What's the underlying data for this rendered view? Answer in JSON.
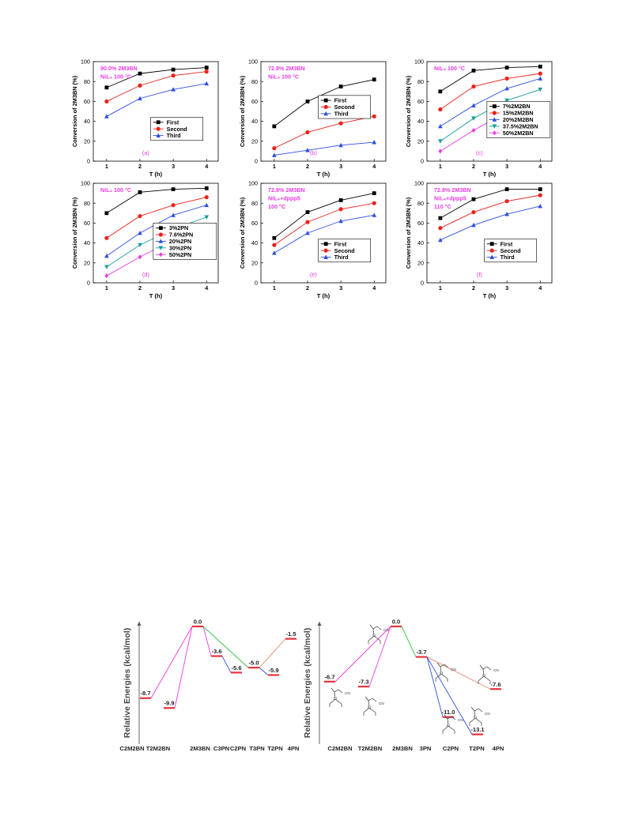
{
  "colors": {
    "black": "#000000",
    "red": "#e8231b",
    "blue": "#2c4fe0",
    "teal": "#1a9e9a",
    "magenta": "#e83de3",
    "green": "#34c43a",
    "orange": "#e48c6c",
    "annotation": "#e83de3",
    "level": "#e8323c"
  },
  "chart_data": [
    {
      "type": "line",
      "panel": "(a)",
      "annotation": [
        "90.0% 2M3BN",
        "NiL₄ 100 °C"
      ],
      "xlabel": "T (h)",
      "ylabel": "Conversion of 2M3BN (%)",
      "x": [
        1,
        2,
        3,
        4
      ],
      "xticks": [
        "1",
        "2",
        "3",
        "4"
      ],
      "ylim": [
        0,
        100
      ],
      "yticks": [
        "0",
        "20",
        "40",
        "60",
        "80",
        "100"
      ],
      "legend": "bottom-right",
      "series": [
        {
          "name": "First",
          "color": "#000000",
          "marker": "square",
          "values": [
            74,
            88,
            92,
            94
          ]
        },
        {
          "name": "Second",
          "color": "#e8231b",
          "marker": "circle",
          "values": [
            60,
            76,
            86,
            90
          ]
        },
        {
          "name": "Third",
          "color": "#2c4fe0",
          "marker": "triangle",
          "values": [
            45,
            63,
            72,
            78
          ]
        }
      ]
    },
    {
      "type": "line",
      "panel": "(b)",
      "annotation": [
        "72.8% 2M3BN",
        "NiL₄ 100 °C"
      ],
      "xlabel": "T (h)",
      "ylabel": "Conversion of 2M3BN (%)",
      "x": [
        1,
        2,
        3,
        4
      ],
      "xticks": [
        "1",
        "2",
        "3",
        "4"
      ],
      "ylim": [
        0,
        100
      ],
      "yticks": [
        "0",
        "20",
        "40",
        "60",
        "80",
        "100"
      ],
      "legend": "center-right",
      "series": [
        {
          "name": "First",
          "color": "#000000",
          "marker": "square",
          "values": [
            35,
            60,
            75,
            82
          ]
        },
        {
          "name": "Second",
          "color": "#e8231b",
          "marker": "circle",
          "values": [
            13,
            29,
            38,
            45
          ]
        },
        {
          "name": "Third",
          "color": "#2c4fe0",
          "marker": "triangle",
          "values": [
            6,
            11,
            16,
            19
          ]
        }
      ]
    },
    {
      "type": "line",
      "panel": "(c)",
      "annotation": [
        "NiL₄ 100 °C"
      ],
      "xlabel": "T (h)",
      "ylabel": "Conversion of 2M3BN (%)",
      "x": [
        1,
        2,
        3,
        4
      ],
      "xticks": [
        "1",
        "2",
        "3",
        "4"
      ],
      "ylim": [
        0,
        100
      ],
      "yticks": [
        "0",
        "20",
        "40",
        "60",
        "80",
        "100"
      ],
      "legend": "bottom-right",
      "series": [
        {
          "name": "7%2M2BN",
          "color": "#000000",
          "marker": "square",
          "values": [
            70,
            91,
            94,
            95
          ]
        },
        {
          "name": "15%2M2BN",
          "color": "#e8231b",
          "marker": "circle",
          "values": [
            52,
            75,
            83,
            88
          ]
        },
        {
          "name": "20%2M2BN",
          "color": "#2c4fe0",
          "marker": "triangle",
          "values": [
            35,
            56,
            73,
            83
          ]
        },
        {
          "name": "37.5%2M2BN",
          "color": "#1a9e9a",
          "marker": "triangle-down",
          "values": [
            20,
            43,
            61,
            72
          ]
        },
        {
          "name": "50%2M2BN",
          "color": "#e83de3",
          "marker": "diamond",
          "values": [
            10,
            31,
            49,
            58
          ]
        }
      ]
    },
    {
      "type": "line",
      "panel": "(d)",
      "annotation": [
        "NiL₄ 100 °C"
      ],
      "xlabel": "T (h)",
      "ylabel": "Conversion of 2M3BN (%)",
      "x": [
        1,
        2,
        3,
        4
      ],
      "xticks": [
        "1",
        "2",
        "3",
        "4"
      ],
      "ylim": [
        0,
        100
      ],
      "yticks": [
        "0",
        "20",
        "40",
        "60",
        "80",
        "100"
      ],
      "legend": "bottom-right",
      "series": [
        {
          "name": "3%2PN",
          "color": "#000000",
          "marker": "square",
          "values": [
            70,
            91,
            94,
            95
          ]
        },
        {
          "name": "7.6%2PN",
          "color": "#e8231b",
          "marker": "circle",
          "values": [
            45,
            67,
            78,
            86
          ]
        },
        {
          "name": "20%2PN",
          "color": "#2c4fe0",
          "marker": "triangle",
          "values": [
            27,
            50,
            68,
            78
          ]
        },
        {
          "name": "30%2PN",
          "color": "#1a9e9a",
          "marker": "triangle-down",
          "values": [
            16,
            38,
            54,
            66
          ]
        },
        {
          "name": "50%2PN",
          "color": "#e83de3",
          "marker": "diamond",
          "values": [
            7,
            26,
            43,
            51
          ]
        }
      ]
    },
    {
      "type": "line",
      "panel": "(e)",
      "annotation": [
        "72.8% 2M3BN",
        "NiL₄+dppp5",
        "100 °C"
      ],
      "xlabel": "T (h)",
      "ylabel": "Conversion of 2M3BN (%)",
      "x": [
        1,
        2,
        3,
        4
      ],
      "xticks": [
        "1",
        "2",
        "3",
        "4"
      ],
      "ylim": [
        0,
        100
      ],
      "yticks": [
        "0",
        "20",
        "40",
        "60",
        "80",
        "100"
      ],
      "legend": "bottom-right",
      "series": [
        {
          "name": "First",
          "color": "#000000",
          "marker": "square",
          "values": [
            45,
            71,
            83,
            90
          ]
        },
        {
          "name": "Second",
          "color": "#e8231b",
          "marker": "circle",
          "values": [
            38,
            61,
            74,
            80
          ]
        },
        {
          "name": "Third",
          "color": "#2c4fe0",
          "marker": "triangle",
          "values": [
            30,
            50,
            62,
            68
          ]
        }
      ]
    },
    {
      "type": "line",
      "panel": "(f)",
      "annotation": [
        "72.8% 2M3BN",
        "NiL₄+dppp5",
        "110 °C"
      ],
      "xlabel": "T (h)",
      "ylabel": "Conversion of 2M3BN (%)",
      "x": [
        1,
        2,
        3,
        4
      ],
      "xticks": [
        "1",
        "2",
        "3",
        "4"
      ],
      "ylim": [
        0,
        100
      ],
      "yticks": [
        "0",
        "20",
        "40",
        "60",
        "80",
        "100"
      ],
      "legend": "bottom-right",
      "series": [
        {
          "name": "First",
          "color": "#000000",
          "marker": "square",
          "values": [
            65,
            84,
            94,
            94
          ]
        },
        {
          "name": "Second",
          "color": "#e8231b",
          "marker": "circle",
          "values": [
            55,
            71,
            82,
            88
          ]
        },
        {
          "name": "Third",
          "color": "#2c4fe0",
          "marker": "triangle",
          "values": [
            43,
            58,
            69,
            77
          ]
        }
      ]
    }
  ],
  "energy_diagrams": [
    {
      "ylabel": "Relative Energies (kcal/mol)",
      "levels": [
        {
          "id": "C2M2BN",
          "label": "C2M2BN",
          "value": -8.7,
          "value_label": "-8.7"
        },
        {
          "id": "T2M2BN",
          "label": "T2M2BN",
          "value": -9.9,
          "value_label": "-9.9"
        },
        {
          "id": "2M3BN",
          "label": "2M3BN",
          "value": 0.0,
          "value_label": "0.0"
        },
        {
          "id": "C3PN",
          "label": "C3PN",
          "value": -3.6,
          "value_label": "-3.6"
        },
        {
          "id": "C2PN",
          "label": "C2PN",
          "value": -5.6,
          "value_label": "-5.6"
        },
        {
          "id": "T3PN",
          "label": "T3PN",
          "value": -5.0,
          "value_label": "-5.0"
        },
        {
          "id": "T2PN",
          "label": "T2PN",
          "value": -5.9,
          "value_label": "-5.9"
        },
        {
          "id": "4PN",
          "label": "4PN",
          "value": -1.5,
          "value_label": "-1.5"
        }
      ],
      "connections": [
        {
          "from": "C2M2BN",
          "to": "2M3BN",
          "color": "#e83de3"
        },
        {
          "from": "T2M2BN",
          "to": "2M3BN",
          "color": "#e83de3"
        },
        {
          "from": "2M3BN",
          "to": "C3PN",
          "color": "#e83de3"
        },
        {
          "from": "2M3BN",
          "to": "T3PN",
          "color": "#34c43a"
        },
        {
          "from": "C3PN",
          "to": "C2PN",
          "color": "#2c4fe0"
        },
        {
          "from": "T3PN",
          "to": "T2PN",
          "color": "#2c4fe0"
        },
        {
          "from": "T3PN",
          "to": "4PN",
          "color": "#e48c6c"
        }
      ]
    },
    {
      "ylabel": "Relative Energies (kcal/mol)",
      "levels": [
        {
          "id": "C2M2BN",
          "label": "C2M2BN",
          "value": -6.7,
          "value_label": "-6.7"
        },
        {
          "id": "T2M2BN",
          "label": "T2M2BN",
          "value": -7.3,
          "value_label": "-7.3"
        },
        {
          "id": "2M3BN",
          "label": "2M3BN",
          "value": 0.0,
          "value_label": "0.0"
        },
        {
          "id": "3PN",
          "label": "3PN",
          "value": -3.7,
          "value_label": "-3.7"
        },
        {
          "id": "C2PN",
          "label": "C2PN",
          "value": -11.0,
          "value_label": "-11.0"
        },
        {
          "id": "T2PN",
          "label": "T2PN",
          "value": -13.1,
          "value_label": "-13.1"
        },
        {
          "id": "4PN",
          "label": "4PN",
          "value": -7.6,
          "value_label": "-7.6"
        }
      ],
      "connections": [
        {
          "from": "C2M2BN",
          "to": "2M3BN",
          "color": "#e83de3"
        },
        {
          "from": "T2M2BN",
          "to": "2M3BN",
          "color": "#e83de3"
        },
        {
          "from": "2M3BN",
          "to": "3PN",
          "color": "#34c43a"
        },
        {
          "from": "3PN",
          "to": "C2PN",
          "color": "#2c4fe0"
        },
        {
          "from": "3PN",
          "to": "T2PN",
          "color": "#2c4fe0"
        },
        {
          "from": "3PN",
          "to": "4PN",
          "color": "#e48c6c"
        }
      ],
      "structure_icons": [
        "C2M2BN",
        "T2M2BN",
        "2M3BN",
        "3PN",
        "C2PN",
        "T2PN",
        "4PN"
      ]
    }
  ]
}
